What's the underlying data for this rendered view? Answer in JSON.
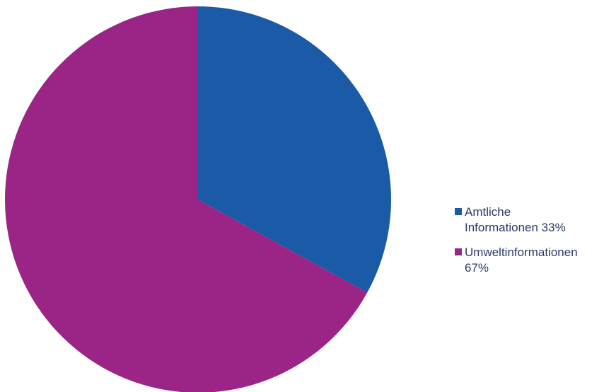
{
  "chart_data": {
    "type": "pie",
    "title": "",
    "slices": [
      {
        "label_lines": [
          "Amtliche",
          "Informationen 33%"
        ],
        "value": 33,
        "color": "#1b5aa6"
      },
      {
        "label_lines": [
          "Umweltinformationen",
          "67%"
        ],
        "value": 67,
        "color": "#9b2487"
      }
    ],
    "start_angle_deg": 0,
    "direction": "clockwise",
    "legend_position": "right"
  }
}
